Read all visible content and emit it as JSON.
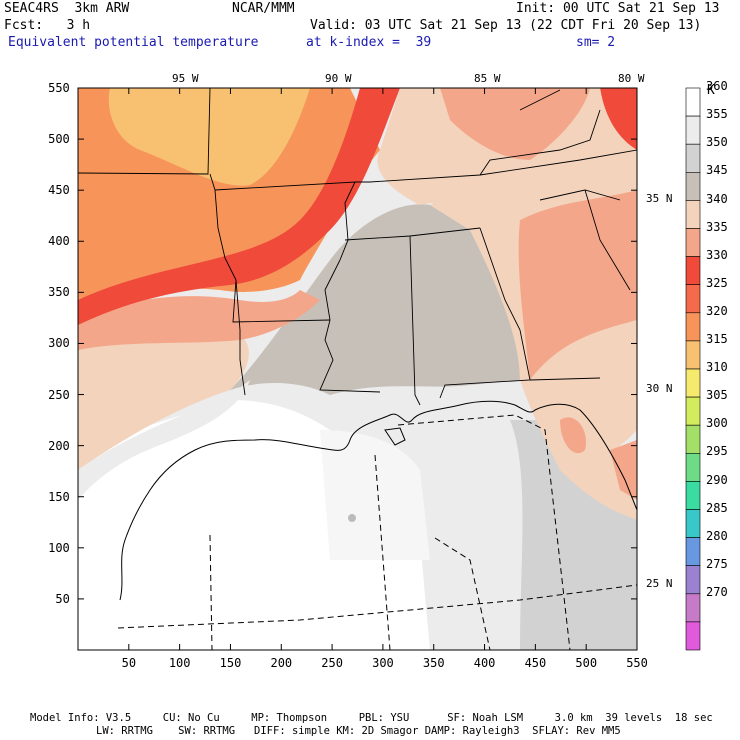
{
  "header": {
    "model": "SEAC4RS  3km ARW",
    "org": "NCAR/MMM",
    "init": "Init: 00 UTC Sat 21 Sep 13",
    "fcst": "Fcst:   3 h",
    "valid": "Valid: 03 UTC Sat 21 Sep 13 (22 CDT Fri 20 Sep 13)",
    "field": "Equivalent potential temperature",
    "level": "at k-index =  39",
    "smoothing": "sm= 2"
  },
  "axes": {
    "x_ticks": [
      "50",
      "100",
      "150",
      "200",
      "250",
      "300",
      "350",
      "400",
      "450",
      "500",
      "550"
    ],
    "y_ticks": [
      "550",
      "500",
      "450",
      "400",
      "350",
      "300",
      "250",
      "200",
      "150",
      "100",
      "50"
    ],
    "lon_labels": [
      "95 W",
      "90 W",
      "85 W",
      "80 W"
    ],
    "lat_labels": [
      "35 N",
      "30 N",
      "25 N"
    ]
  },
  "colorbar": {
    "unit": "K",
    "levels": [
      "360",
      "355",
      "350",
      "345",
      "340",
      "335",
      "330",
      "325",
      "320",
      "315",
      "310",
      "305",
      "300",
      "295",
      "290",
      "285",
      "280",
      "275",
      "270"
    ],
    "colors": [
      "#ffffff",
      "#ececec",
      "#d2d2d2",
      "#c6c0b8",
      "#f3d3bc",
      "#f4a68a",
      "#ef4a3a",
      "#f46a4a",
      "#f7945a",
      "#f8c172",
      "#f5ea6e",
      "#d3ec5e",
      "#a4e068",
      "#6edc86",
      "#3adca2",
      "#38c8c8",
      "#6898e0",
      "#9a82d0",
      "#c67ac8",
      "#e05adc"
    ]
  },
  "footer": {
    "line1": "Model Info: V3.5     CU: No Cu     MP: Thompson     PBL: YSU      SF: Noah LSM     3.0 km  39 levels  18 sec",
    "line2": "LW: RRTMG    SW: RRTMG   DIFF: simple KM: 2D Smagor DAMP: Rayleigh3  SFLAY: Rev MM5"
  }
}
